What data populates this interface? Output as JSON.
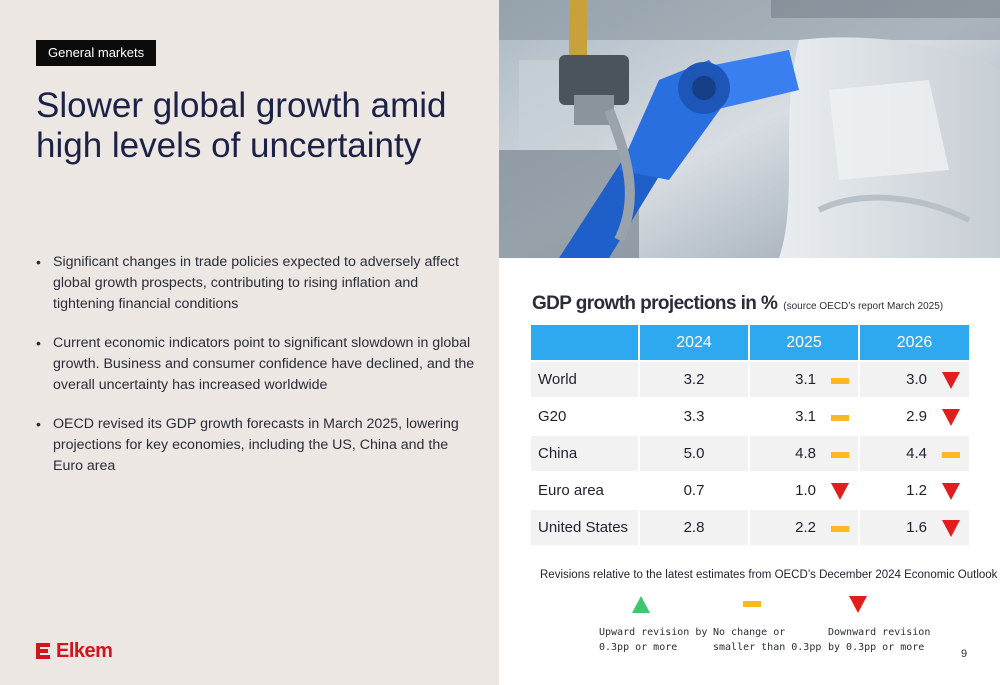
{
  "tag": "General markets",
  "title_line1": "Slower global growth amid",
  "title_line2": "high levels of uncertainty",
  "bullets": [
    "Significant changes in trade policies expected to adversely affect global growth prospects, contributing to rising inflation and tightening financial conditions",
    "Current economic indicators point to significant slowdown in global growth. Business and consumer confidence have declined, and the overall uncertainty has increased worldwide",
    "OECD revised its GDP growth forecasts in March 2025, lowering projections for key economies, including the US, China and the Euro area"
  ],
  "logo": {
    "text": "Elkem",
    "color": "#d2141d"
  },
  "gdp": {
    "title": "GDP growth projections in %",
    "source": "(source OECD’s report March 2025)",
    "columns": [
      "2024",
      "2025",
      "2026"
    ],
    "rows": [
      {
        "label": "World",
        "v2024": "3.2",
        "v2025": "3.1",
        "r2025": "no-change",
        "v2026": "3.0",
        "r2026": "downward"
      },
      {
        "label": "G20",
        "v2024": "3.3",
        "v2025": "3.1",
        "r2025": "no-change",
        "v2026": "2.9",
        "r2026": "downward"
      },
      {
        "label": "China",
        "v2024": "5.0",
        "v2025": "4.8",
        "r2025": "no-change",
        "v2026": "4.4",
        "r2026": "no-change"
      },
      {
        "label": "Euro area",
        "v2024": "0.7",
        "v2025": "1.0",
        "r2025": "downward",
        "v2026": "1.2",
        "r2026": "downward"
      },
      {
        "label": "United States",
        "v2024": "2.8",
        "v2025": "2.2",
        "r2025": "no-change",
        "v2026": "1.6",
        "r2026": "downward"
      }
    ],
    "header_color": "#2ea8ee"
  },
  "revisions_note": "Revisions relative to the latest estimates from OECD’s December 2024 Economic Outlook",
  "legend": {
    "upward": {
      "line1": "Upward revision by",
      "line2": "0.3pp or more",
      "color": "#3ec76e"
    },
    "no_change": {
      "line1": "No change or",
      "line2": "smaller than 0.3pp",
      "color": "#fbb820"
    },
    "downward": {
      "line1": "Downward revision",
      "line2": "by 0.3pp or more",
      "color": "#e31d1d"
    }
  },
  "page_number": "9"
}
